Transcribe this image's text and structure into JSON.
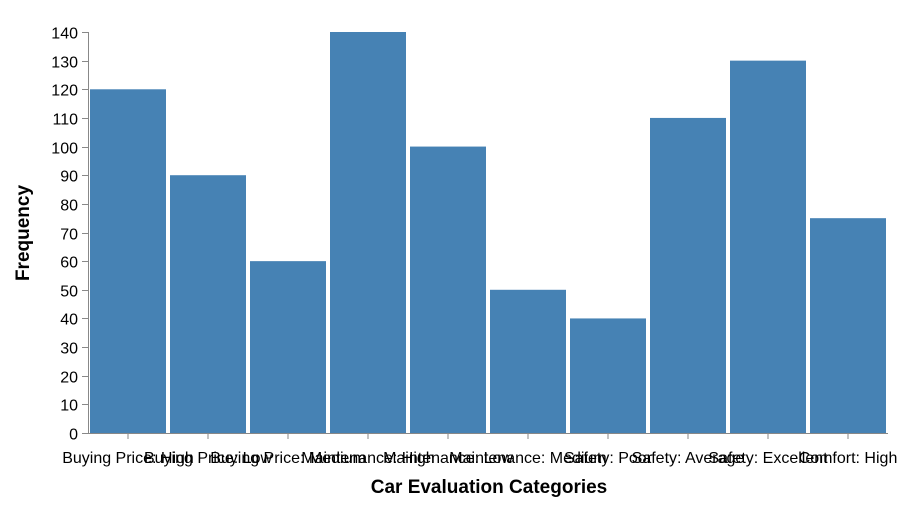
{
  "chart_data": {
    "type": "bar",
    "categories": [
      "Buying Price: High",
      "Buying Price: Low",
      "Buying Price: Medium",
      "Maintenance: High",
      "Maintenance: Low",
      "Maintenance: Medium",
      "Safety: Poor",
      "Safety: Average",
      "Safety: Excellent",
      "Comfort: High"
    ],
    "values": [
      120,
      90,
      60,
      140,
      100,
      50,
      40,
      110,
      130,
      75
    ],
    "xlabel": "Car Evaluation Categories",
    "ylabel": "Frequency",
    "ylim": [
      0,
      140
    ],
    "yticks": [
      0,
      10,
      20,
      30,
      40,
      50,
      60,
      70,
      80,
      90,
      100,
      110,
      120,
      130,
      140
    ],
    "grid": false,
    "bar_color": "#4682b4"
  }
}
